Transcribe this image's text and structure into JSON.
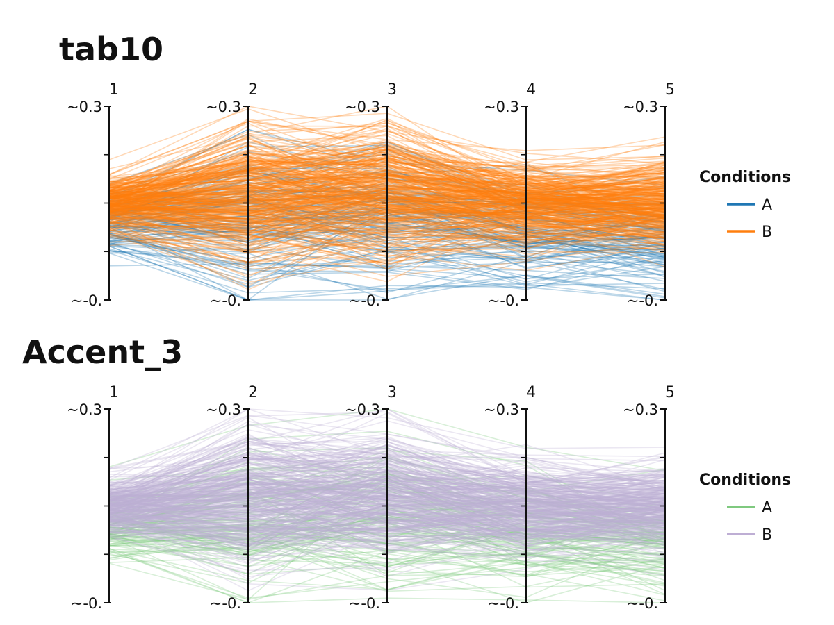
{
  "chart_data": [
    {
      "type": "parallel-coordinates",
      "title": "tab10",
      "axes": [
        "1",
        "2",
        "3",
        "4",
        "5"
      ],
      "tick_labels": {
        "top": "~0.3",
        "bottom": "~-0."
      },
      "ylim": [
        0.0,
        0.3
      ],
      "minor_ticks": [
        0.075,
        0.15,
        0.225
      ],
      "grid": false,
      "legend": {
        "title": "Conditions",
        "placement": "right",
        "entries": [
          {
            "label": "A",
            "color": "#1f77b4"
          },
          {
            "label": "B",
            "color": "#ff7f0e"
          }
        ]
      },
      "draw_order": [
        "A",
        "B"
      ],
      "bundles": [
        {
          "group": "A",
          "count": 110,
          "centers": [
            0.115,
            0.125,
            0.13,
            0.105,
            0.09
          ],
          "spread": [
            0.03,
            0.07,
            0.07,
            0.05,
            0.05
          ]
        },
        {
          "group": "B",
          "count": 330,
          "centers": [
            0.15,
            0.165,
            0.17,
            0.15,
            0.15
          ],
          "spread": [
            0.025,
            0.06,
            0.06,
            0.04,
            0.04
          ]
        }
      ]
    },
    {
      "type": "parallel-coordinates",
      "title": "Accent_3",
      "axes": [
        "1",
        "2",
        "3",
        "4",
        "5"
      ],
      "tick_labels": {
        "top": "~0.3",
        "bottom": "~-0."
      },
      "ylim": [
        0.0,
        0.3
      ],
      "minor_ticks": [
        0.075,
        0.15,
        0.225
      ],
      "grid": false,
      "legend": {
        "title": "Conditions",
        "placement": "right",
        "entries": [
          {
            "label": "A",
            "color": "#7fc97f"
          },
          {
            "label": "B",
            "color": "#beaed4"
          }
        ]
      },
      "draw_order": [
        "A",
        "B"
      ],
      "bundles": [
        {
          "group": "A",
          "count": 110,
          "centers": [
            0.115,
            0.125,
            0.13,
            0.105,
            0.09
          ],
          "spread": [
            0.03,
            0.07,
            0.07,
            0.05,
            0.05
          ]
        },
        {
          "group": "B",
          "count": 330,
          "centers": [
            0.15,
            0.165,
            0.17,
            0.15,
            0.15
          ],
          "spread": [
            0.025,
            0.06,
            0.06,
            0.04,
            0.04
          ]
        }
      ]
    }
  ]
}
